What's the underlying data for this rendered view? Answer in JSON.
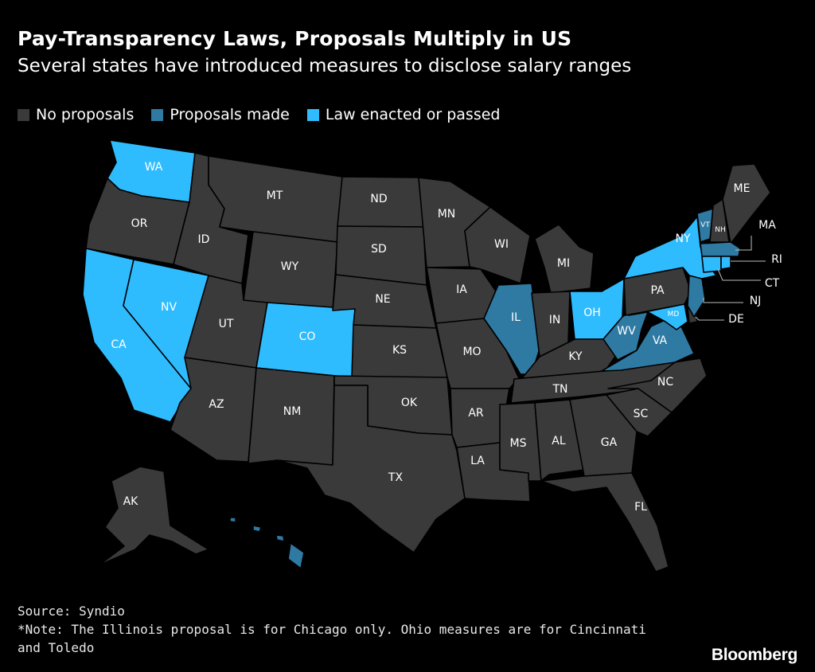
{
  "title": "Pay-Transparency Laws, Proposals Multiply in US",
  "subtitle": "Several states have introduced measures to disclose salary ranges",
  "legend": [
    {
      "label": "No proposals",
      "color": "#3a3a3a"
    },
    {
      "label": "Proposals made",
      "color": "#2f7aa3"
    },
    {
      "label": "Law enacted or passed",
      "color": "#2fbcff"
    }
  ],
  "colors": {
    "none": "#3a3a3a",
    "proposal": "#2f7aa3",
    "law": "#2fbcff",
    "border": "#000000",
    "background": "#000000"
  },
  "states": {
    "WA": "law",
    "OR": "none",
    "CA": "law",
    "NV": "law",
    "ID": "none",
    "MT": "none",
    "WY": "none",
    "UT": "none",
    "CO": "law",
    "AZ": "none",
    "NM": "none",
    "ND": "none",
    "SD": "none",
    "NE": "none",
    "KS": "none",
    "OK": "none",
    "TX": "none",
    "MN": "none",
    "IA": "none",
    "MO": "none",
    "AR": "none",
    "LA": "none",
    "WI": "none",
    "IL": "proposal",
    "MI": "none",
    "IN": "none",
    "OH": "law",
    "KY": "none",
    "TN": "none",
    "MS": "none",
    "AL": "none",
    "GA": "none",
    "FL": "none",
    "SC": "none",
    "NC": "none",
    "VA": "proposal",
    "WV": "proposal",
    "PA": "none",
    "NY": "law",
    "VT": "proposal",
    "NH": "none",
    "ME": "none",
    "MA": "proposal",
    "RI": "law",
    "CT": "law",
    "NJ": "proposal",
    "DE": "none",
    "MD": "law",
    "AK": "none",
    "HI": "proposal"
  },
  "labels": {
    "WA": "WA",
    "OR": "OR",
    "CA": "CA",
    "NV": "NV",
    "ID": "ID",
    "MT": "MT",
    "WY": "WY",
    "UT": "UT",
    "CO": "CO",
    "AZ": "AZ",
    "NM": "NM",
    "ND": "ND",
    "SD": "SD",
    "NE": "NE",
    "KS": "KS",
    "OK": "OK",
    "TX": "TX",
    "MN": "MN",
    "IA": "IA",
    "MO": "MO",
    "AR": "AR",
    "LA": "LA",
    "WI": "WI",
    "IL": "IL",
    "MI": "MI",
    "IN": "IN",
    "OH": "OH",
    "KY": "KY",
    "TN": "TN",
    "MS": "MS",
    "AL": "AL",
    "GA": "GA",
    "FL": "FL",
    "SC": "SC",
    "NC": "NC",
    "VA": "VA",
    "WV": "WV",
    "PA": "PA",
    "NY": "NY",
    "VT": "VT",
    "NH": "NH",
    "ME": "ME",
    "MA": "MA",
    "RI": "RI",
    "CT": "CT",
    "NJ": "NJ",
    "DE": "DE",
    "MD": "MD",
    "AK": "AK"
  },
  "source": "Source: Syndio",
  "note": "*Note: The Illinois proposal is for Chicago only. Ohio measures are for Cincinnati and Toledo",
  "brand": "Bloomberg"
}
